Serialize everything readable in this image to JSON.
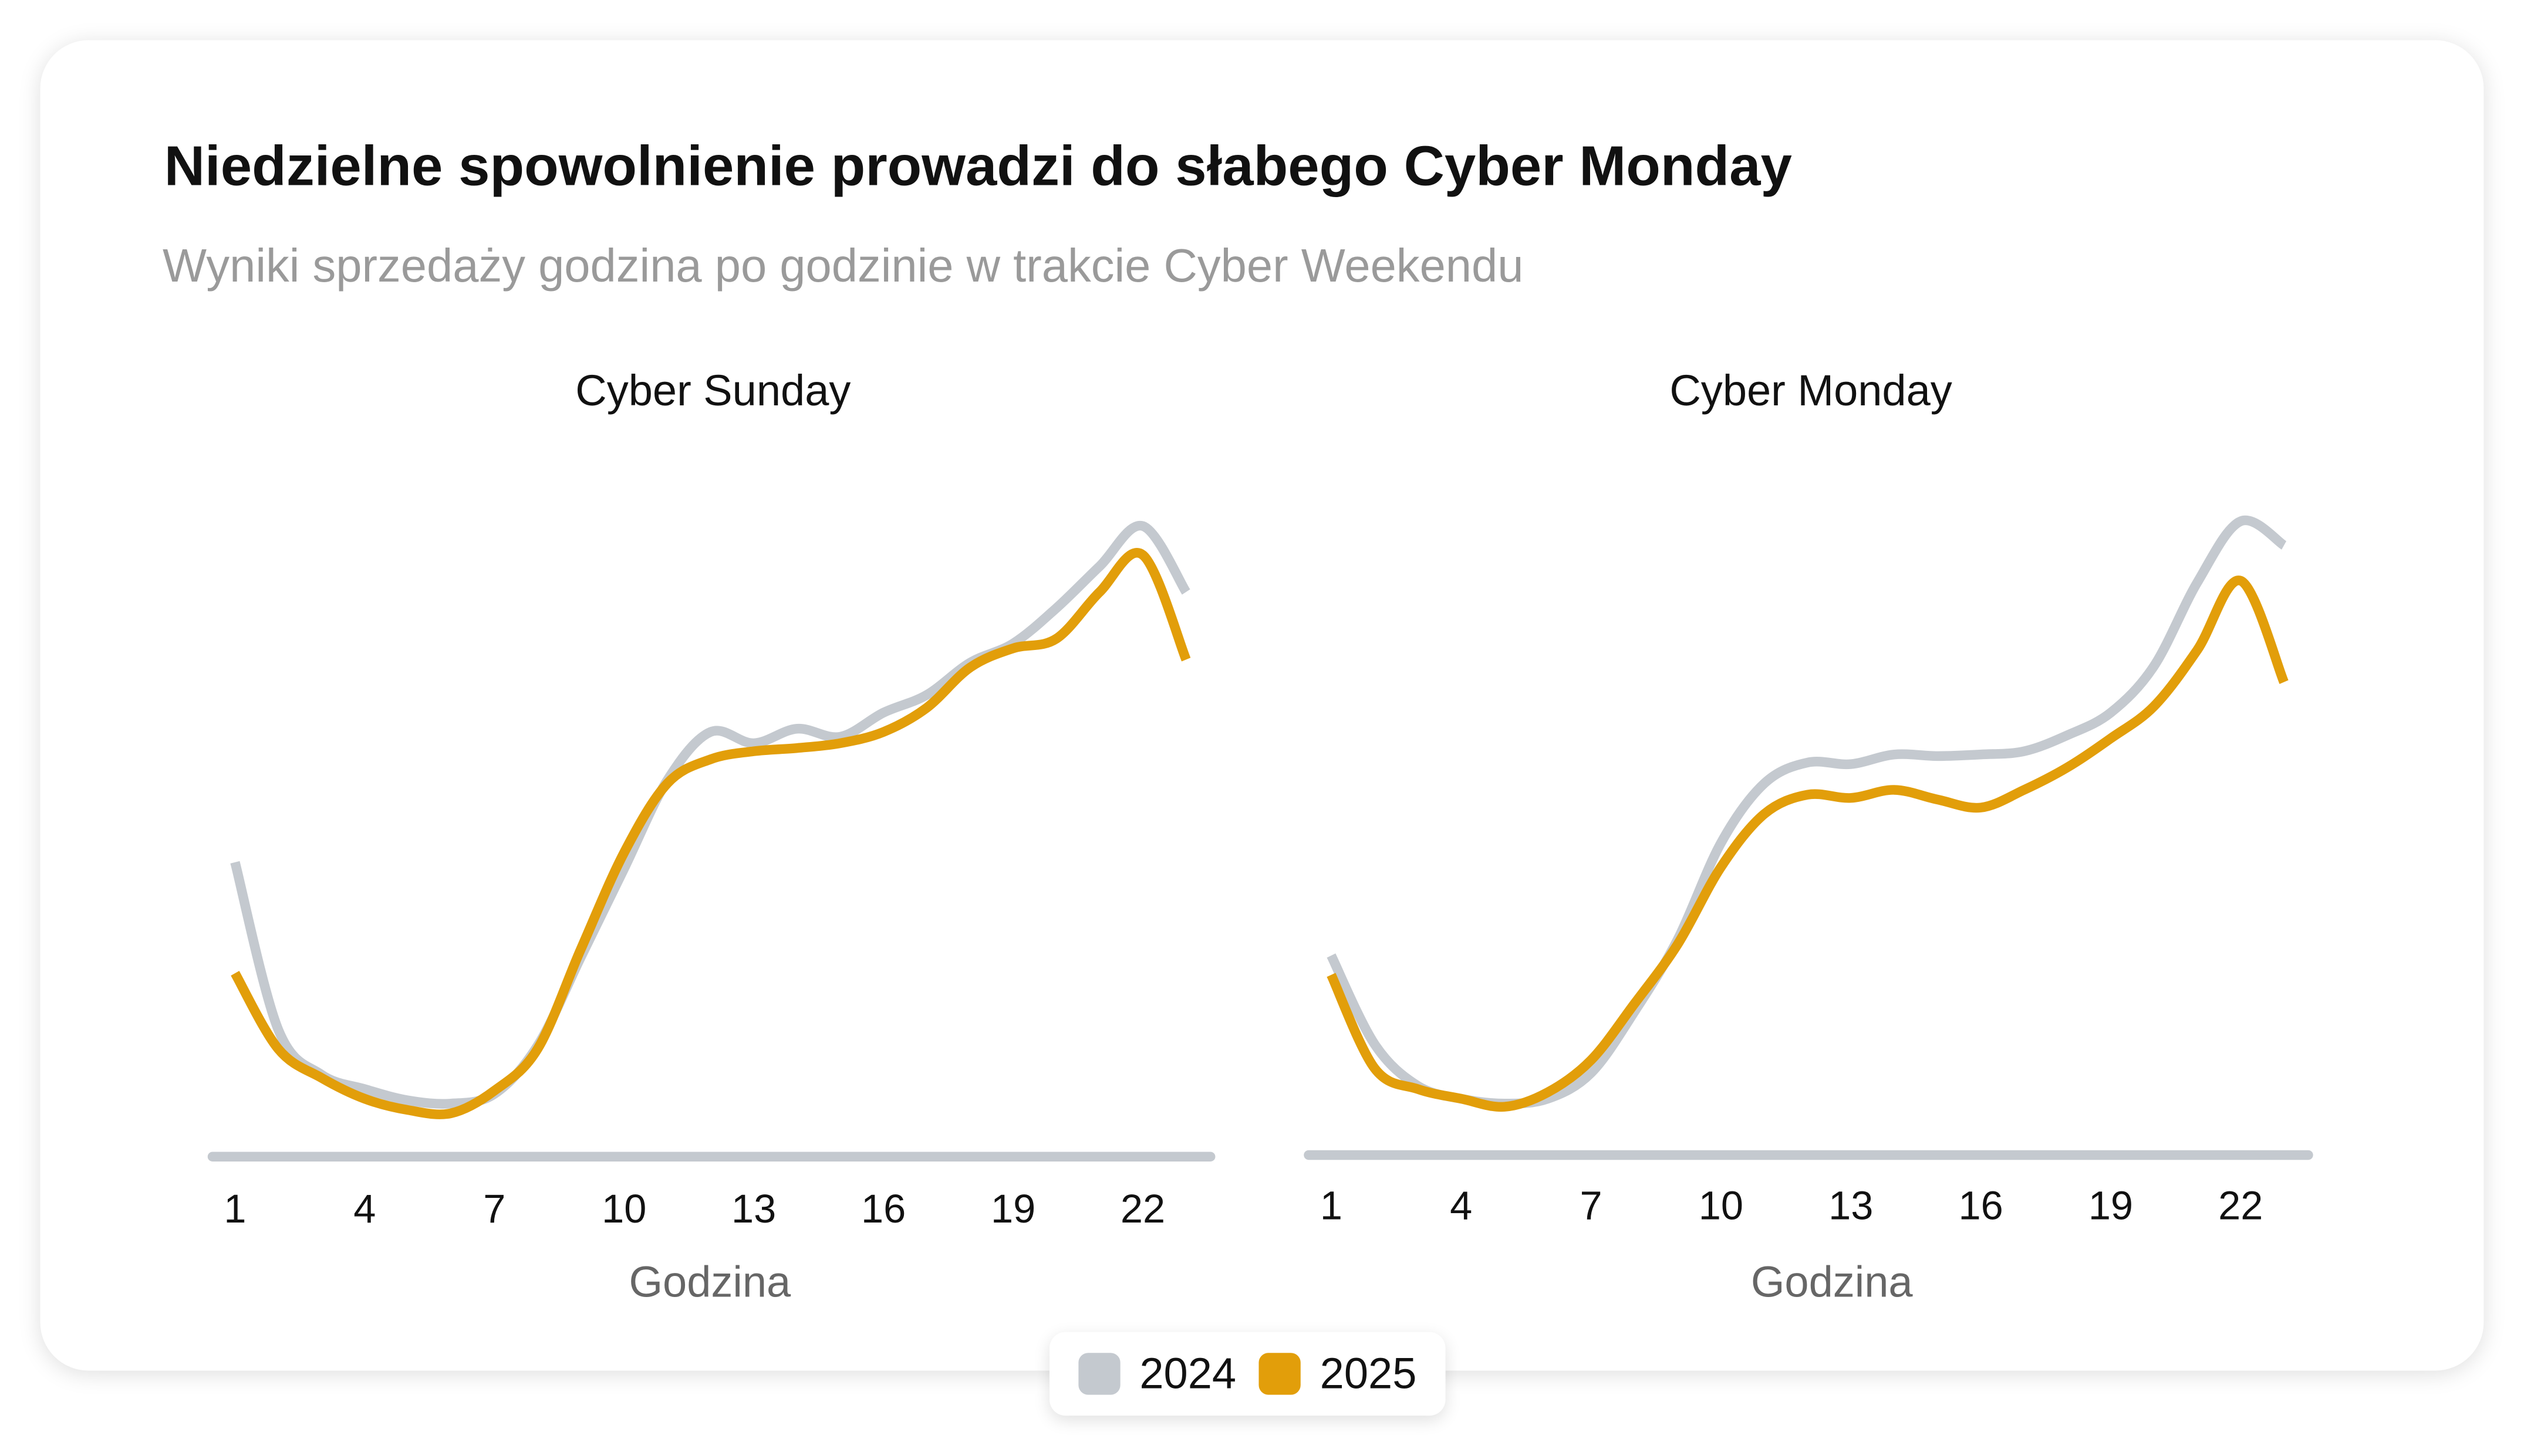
{
  "title": "Niedzielne spowolnienie prowadzi do słabego Cyber Monday",
  "subtitle": "Wyniki sprzedaży godzina po godzinie w trakcie Cyber Weekendu",
  "legend": [
    {
      "label": "2024",
      "color": "#c4c9cf"
    },
    {
      "label": "2025",
      "color": "#e29e0a"
    }
  ],
  "chart_data": [
    {
      "type": "line",
      "title": "Cyber Sunday",
      "xlabel": "Godzina",
      "ylabel": "",
      "x": [
        1,
        2,
        3,
        4,
        5,
        6,
        7,
        8,
        9,
        10,
        11,
        12,
        13,
        14,
        15,
        16,
        17,
        18,
        19,
        20,
        21,
        22,
        23
      ],
      "xticks": [
        1,
        4,
        7,
        10,
        13,
        16,
        19,
        22
      ],
      "ylim": [
        0,
        400
      ],
      "grid": false,
      "legend_position": "bottom-center",
      "series": [
        {
          "name": "2024",
          "values": [
            184,
            80,
            52,
            43,
            36,
            34,
            40,
            70,
            125,
            180,
            235,
            265,
            258,
            267,
            262,
            277,
            288,
            308,
            320,
            342,
            368,
            393,
            352
          ]
        },
        {
          "name": "2025",
          "values": [
            115,
            68,
            50,
            37,
            30,
            28,
            42,
            68,
            130,
            190,
            233,
            248,
            253,
            255,
            258,
            265,
            280,
            305,
            317,
            323,
            352,
            375,
            310
          ]
        }
      ]
    },
    {
      "type": "line",
      "title": "Cyber Monday",
      "xlabel": "Godzina",
      "ylabel": "",
      "x": [
        1,
        2,
        3,
        4,
        5,
        6,
        7,
        8,
        9,
        10,
        11,
        12,
        13,
        14,
        15,
        16,
        17,
        18,
        19,
        20,
        21,
        22,
        23
      ],
      "xticks": [
        1,
        4,
        7,
        10,
        13,
        16,
        19,
        22
      ],
      "ylim": [
        0,
        400
      ],
      "grid": false,
      "legend_position": "bottom-center",
      "series": [
        {
          "name": "2024",
          "values": [
            125,
            70,
            44,
            36,
            33,
            36,
            52,
            90,
            135,
            195,
            232,
            245,
            244,
            250,
            249,
            250,
            252,
            262,
            276,
            305,
            357,
            395,
            380
          ]
        },
        {
          "name": "2025",
          "values": [
            113,
            55,
            42,
            36,
            31,
            40,
            60,
            95,
            132,
            180,
            213,
            225,
            223,
            228,
            222,
            217,
            228,
            242,
            260,
            280,
            315,
            358,
            295
          ]
        }
      ]
    }
  ]
}
